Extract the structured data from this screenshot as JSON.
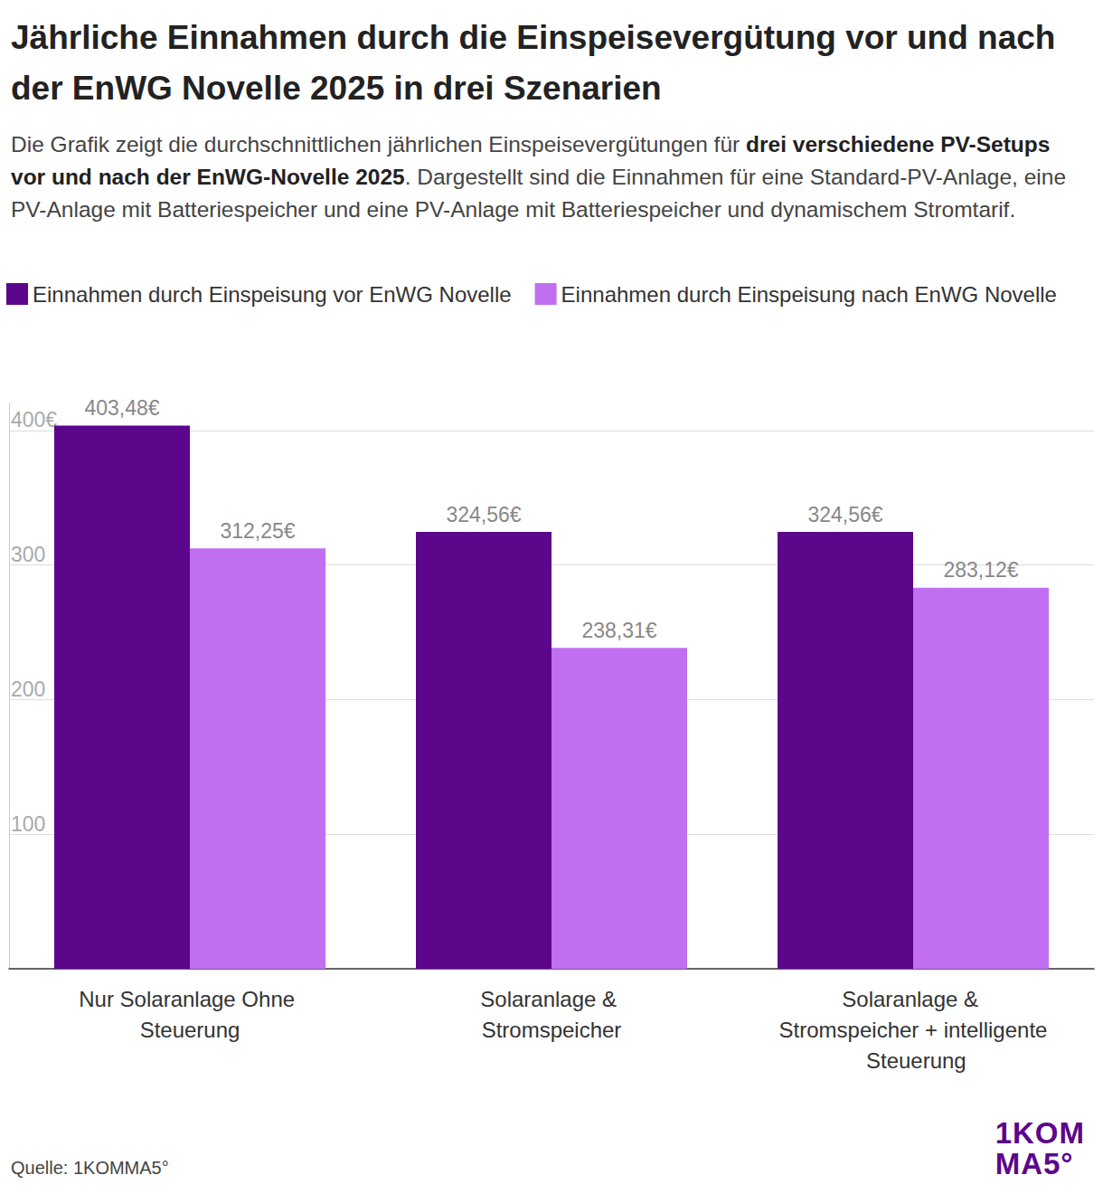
{
  "chart_data": {
    "type": "bar",
    "title": "Jährliche Einnahmen durch die Einspeisevergütung vor und nach der EnWG Novelle 2025 in drei Szenarien",
    "subtitle": [
      "Die Grafik zeigt die durchschnittlichen jährlichen Einspeisevergütungen für ",
      "drei verschiedene PV-Setups vor und nach der EnWG-Novelle 2025",
      ". Dargestellt sind die Einnahmen für eine Standard-PV-Anlage, eine PV-Anlage mit Batteriespeicher und eine PV-Anlage mit Batteriespeicher und dynamischem Stromtarif."
    ],
    "source": "Quelle: 1KOMMA5°",
    "logo": [
      "1KOM",
      "MA5°"
    ],
    "categories": [
      "Nur Solaranlage Ohne Steuerung",
      "Solaranlage & Stromspeicher",
      "Solaranlage & Stromspeicher + intelligente Steuerung"
    ],
    "series": [
      {
        "name": "Einnahmen durch Einspeisung vor EnWG Novelle",
        "color": "#5c068c",
        "values": [
          403.48,
          324.56,
          324.56
        ],
        "value_labels": [
          "403,48€",
          "324,56€",
          "324,56€"
        ]
      },
      {
        "name": "Einnahmen durch Einspeisung nach EnWG Novelle",
        "color": "#bf6ff0",
        "values": [
          312.25,
          238.31,
          283.12
        ],
        "value_labels": [
          "312,25€",
          "238,31€",
          "283,12€"
        ]
      }
    ],
    "ylim": [
      0,
      420
    ],
    "yticks": [
      100,
      200,
      300,
      {
        "value": 400,
        "label": "400€"
      }
    ],
    "grid": true,
    "legend": "top-left",
    "data_labels": true
  }
}
